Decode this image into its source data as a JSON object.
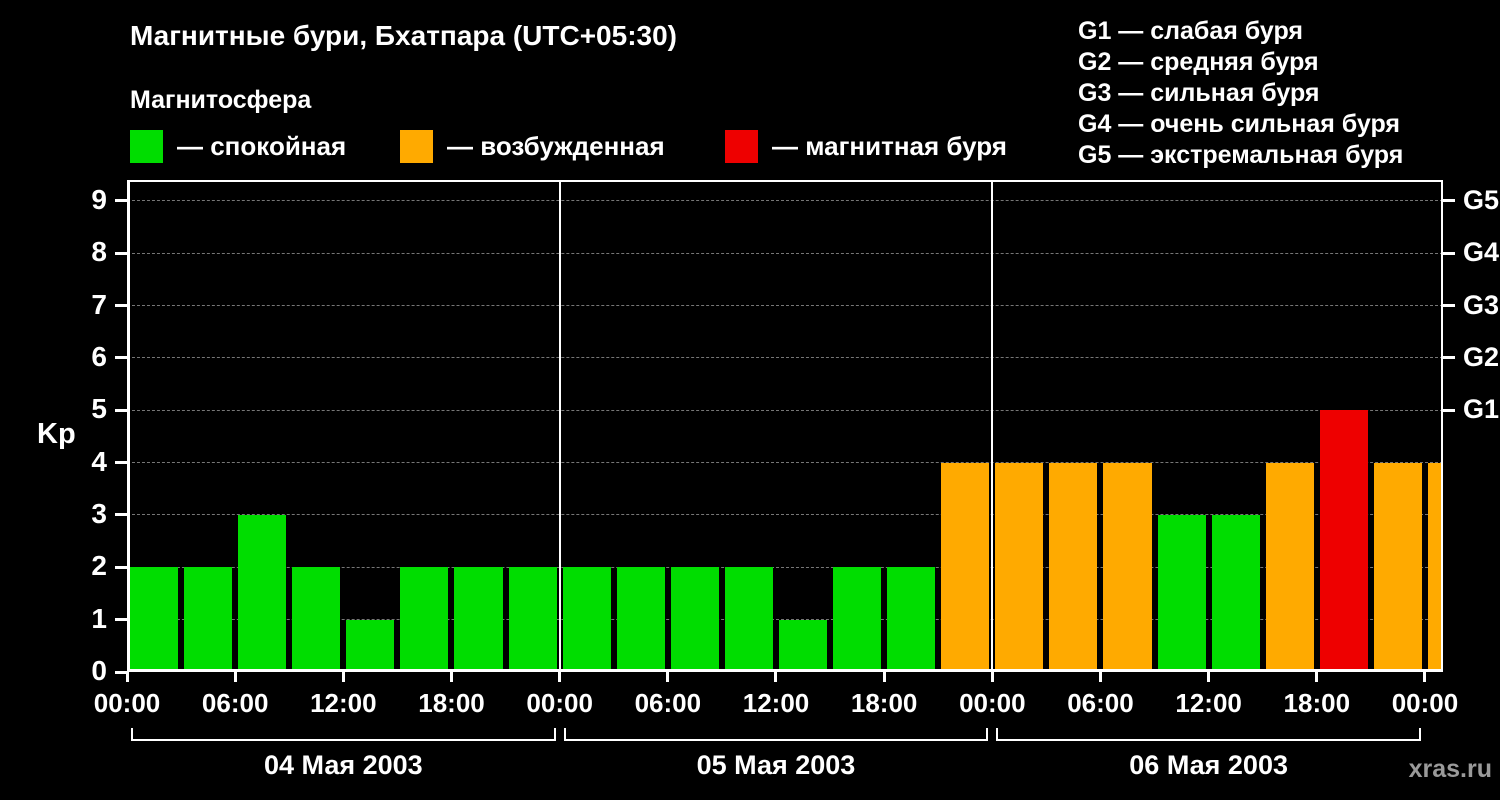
{
  "title": "Магнитные бури, Бхатпара (UTC+05:30)",
  "legend": {
    "heading": "Магнитосфера",
    "items": [
      {
        "key": "quiet",
        "label": "— спокойная",
        "color": "#00dd00"
      },
      {
        "key": "excited",
        "label": "— возбужденная",
        "color": "#ffaa00"
      },
      {
        "key": "storm",
        "label": "— магнитная буря",
        "color": "#ee0000"
      }
    ]
  },
  "g_legend": [
    "G1 — слабая буря",
    "G2 — средняя буря",
    "G3 — сильная буря",
    "G4 — очень сильная буря",
    "G5 — экстремальная буря"
  ],
  "watermark": "xras.ru",
  "chart_data": {
    "type": "bar",
    "title": "Магнитные бури, Бхатпара (UTC+05:30)",
    "ylabel": "Kp",
    "ylim": [
      0,
      9.4
    ],
    "yticks": [
      0,
      1,
      2,
      3,
      4,
      5,
      6,
      7,
      8,
      9
    ],
    "right_axis": [
      {
        "label": "G1",
        "value": 5
      },
      {
        "label": "G2",
        "value": 6
      },
      {
        "label": "G3",
        "value": 7
      },
      {
        "label": "G4",
        "value": 8
      },
      {
        "label": "G5",
        "value": 9
      }
    ],
    "x_tick_labels": [
      "00:00",
      "06:00",
      "12:00",
      "18:00",
      "00:00",
      "06:00",
      "12:00",
      "18:00",
      "00:00",
      "06:00",
      "12:00",
      "18:00",
      "00:00"
    ],
    "hours_per_bar": 3,
    "days": [
      {
        "label": "04 Мая 2003",
        "values": [
          2,
          2,
          3,
          2,
          1,
          2,
          2,
          2
        ]
      },
      {
        "label": "05 Мая 2003",
        "values": [
          2,
          2,
          2,
          2,
          1,
          2,
          2,
          4
        ]
      },
      {
        "label": "06 Мая 2003",
        "values": [
          4,
          4,
          4,
          3,
          3,
          4,
          5,
          4
        ]
      }
    ],
    "next_day_partial_value": 4,
    "color_thresholds": {
      "storm_min": 5,
      "excited_min": 4
    },
    "grid": "dashed-horizontal",
    "legend_position": "top"
  }
}
